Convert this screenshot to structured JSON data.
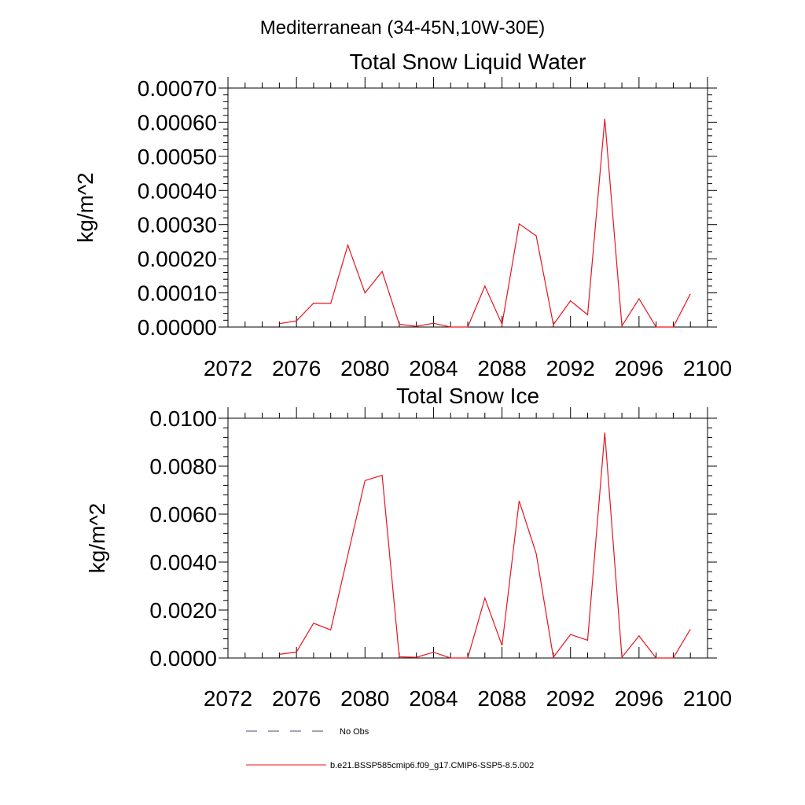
{
  "page": {
    "title": "Mediterranean (34-45N,10W-30E)"
  },
  "chart_data": [
    {
      "type": "line",
      "title": "Total Snow Liquid Water",
      "ylabel": "kg/m^2",
      "xlim": [
        2072,
        2100
      ],
      "ylim": [
        0,
        0.0007
      ],
      "x_ticks": [
        2072,
        2076,
        2080,
        2084,
        2088,
        2092,
        2096,
        2100
      ],
      "x_tick_labels": [
        "2072",
        "2076",
        "2080",
        "2084",
        "2088",
        "2092",
        "2096",
        "2100"
      ],
      "y_ticks": [
        0,
        0.0001,
        0.0002,
        0.0003,
        0.0004,
        0.0005,
        0.0006,
        0.0007
      ],
      "y_tick_labels": [
        "0.00000",
        "0.00010",
        "0.00020",
        "0.00030",
        "0.00040",
        "0.00050",
        "0.00060",
        "0.00070"
      ],
      "series": [
        {
          "name": "b.e21.BSSP585cmip6.f09_g17.CMIP6-SSP5-8.5.002",
          "color": "#e8141e",
          "x": [
            2075,
            2076,
            2077,
            2078,
            2079,
            2080,
            2081,
            2082,
            2083,
            2084,
            2085,
            2086,
            2087,
            2088,
            2089,
            2090,
            2091,
            2092,
            2093,
            2094,
            2095,
            2096,
            2097,
            2098,
            2099
          ],
          "y": [
            1e-05,
            1.8e-05,
            7e-05,
            6.9e-05,
            0.00024,
            0.0001,
            0.000163,
            8e-06,
            2e-06,
            1.1e-05,
            0,
            0,
            0.00012,
            8e-06,
            0.000302,
            0.000267,
            7e-06,
            7.7e-05,
            3.6e-05,
            0.00061,
            3e-06,
            8.3e-05,
            0,
            0,
            9.7e-05
          ]
        }
      ]
    },
    {
      "type": "line",
      "title": "Total Snow Ice",
      "ylabel": "kg/m^2",
      "xlim": [
        2072,
        2100
      ],
      "ylim": [
        0,
        0.01
      ],
      "x_ticks": [
        2072,
        2076,
        2080,
        2084,
        2088,
        2092,
        2096,
        2100
      ],
      "x_tick_labels": [
        "2072",
        "2076",
        "2080",
        "2084",
        "2088",
        "2092",
        "2096",
        "2100"
      ],
      "y_ticks": [
        0,
        0.002,
        0.004,
        0.006,
        0.008,
        0.01
      ],
      "y_tick_labels": [
        "0.0000",
        "0.0020",
        "0.0040",
        "0.0060",
        "0.0080",
        "0.0100"
      ],
      "series": [
        {
          "name": "b.e21.BSSP585cmip6.f09_g17.CMIP6-SSP5-8.5.002",
          "color": "#e8141e",
          "x": [
            2075,
            2076,
            2077,
            2078,
            2079,
            2080,
            2081,
            2082,
            2083,
            2084,
            2085,
            2086,
            2087,
            2088,
            2089,
            2090,
            2091,
            2092,
            2093,
            2094,
            2095,
            2096,
            2097,
            2098,
            2099
          ],
          "y": [
            0.00015,
            0.00025,
            0.00145,
            0.00117,
            0.0043,
            0.0074,
            0.00762,
            5e-05,
            3e-05,
            0.00024,
            0,
            0,
            0.0025,
            0.00052,
            0.00655,
            0.00435,
            3e-05,
            0.00098,
            0.00074,
            0.0094,
            3e-05,
            0.00092,
            0,
            0,
            0.0012
          ]
        }
      ]
    }
  ],
  "legend": {
    "placement": "bottom",
    "items": [
      {
        "label": "No Obs",
        "style": "dashed",
        "color": "#4a4a7a"
      },
      {
        "label": "b.e21.BSSP585cmip6.f09_g17.CMIP6-SSP5-8.5.002",
        "style": "solid",
        "color": "#e8141e"
      }
    ]
  }
}
